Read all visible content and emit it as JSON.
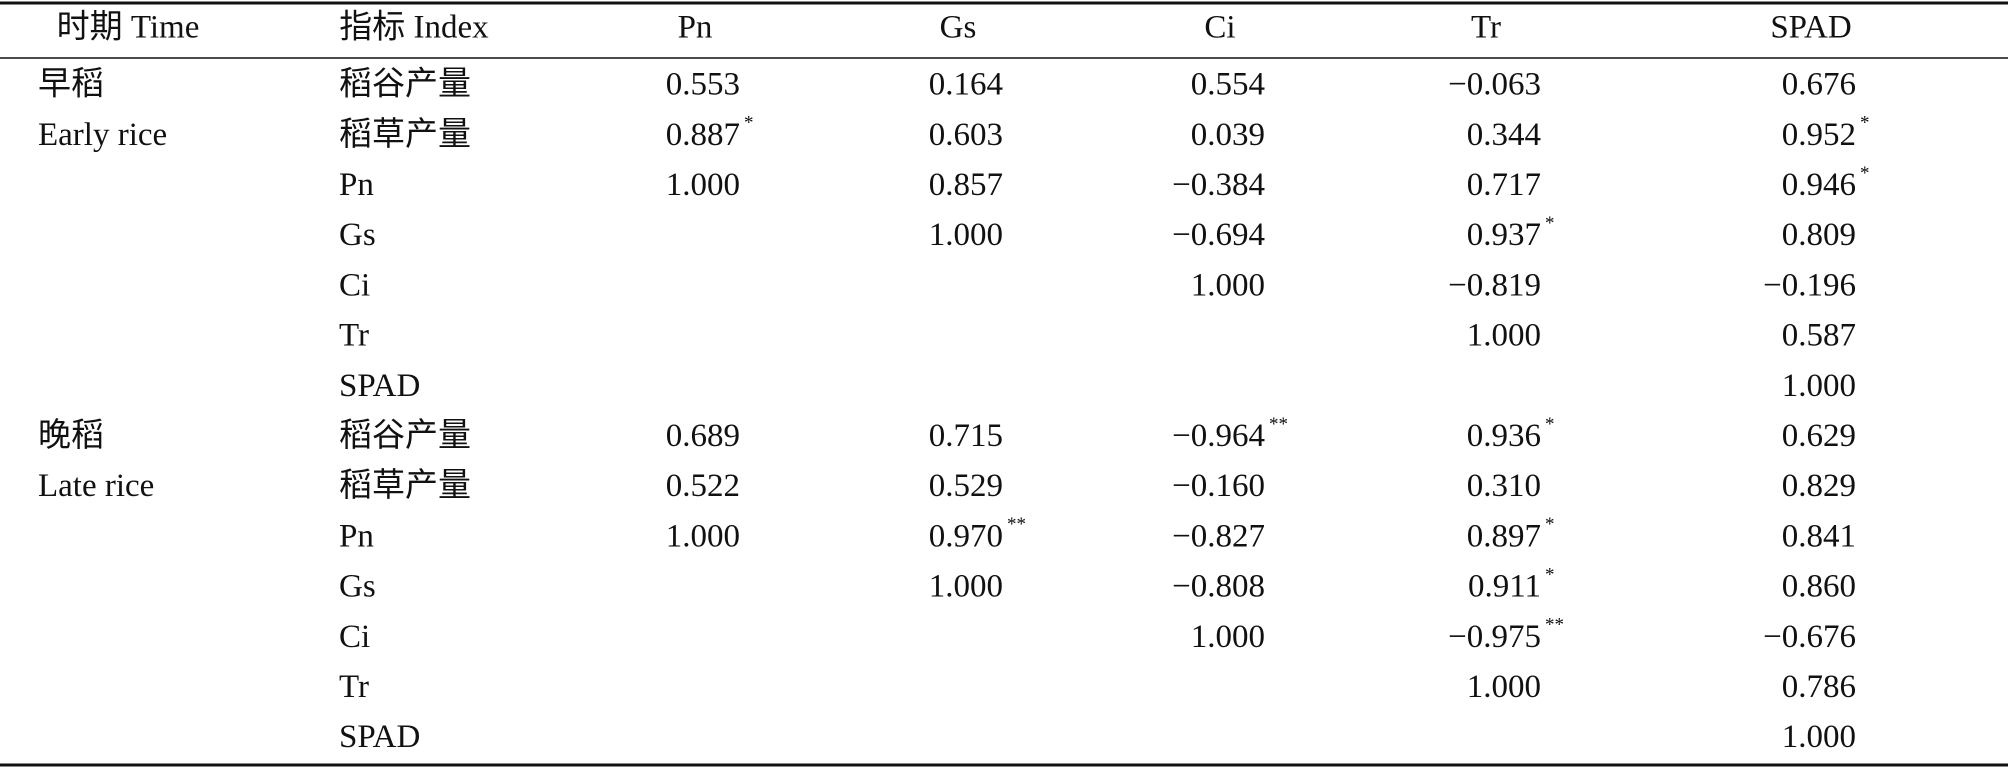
{
  "table": {
    "header": [
      "时期 Time",
      "指标 Index",
      "Pn",
      "Gs",
      "Ci",
      "Tr",
      "SPAD"
    ],
    "rows": [
      {
        "period": "早稻",
        "index": "稻谷产量",
        "values": [
          "0.553",
          "0.164",
          "0.554",
          "−0.063",
          "0.676"
        ],
        "sig": [
          null,
          null,
          null,
          null,
          null
        ]
      },
      {
        "period": "Early rice",
        "index": "稻草产量",
        "values": [
          "0.887",
          "0.603",
          "0.039",
          "0.344",
          "0.952"
        ],
        "sig": [
          "*",
          null,
          null,
          null,
          "*"
        ]
      },
      {
        "index": "Pn",
        "values": [
          "1.000",
          "0.857",
          "−0.384",
          "0.717",
          "0.946"
        ],
        "sig": [
          null,
          null,
          null,
          null,
          "*"
        ]
      },
      {
        "index": "Gs",
        "values": [
          null,
          "1.000",
          "−0.694",
          "0.937",
          "0.809"
        ],
        "sig": [
          null,
          null,
          null,
          "*",
          null
        ]
      },
      {
        "index": "Ci",
        "values": [
          null,
          null,
          "1.000",
          "−0.819",
          "−0.196"
        ],
        "sig": [
          null,
          null,
          null,
          null,
          null
        ]
      },
      {
        "index": "Tr",
        "values": [
          null,
          null,
          null,
          "1.000",
          "0.587"
        ],
        "sig": [
          null,
          null,
          null,
          null,
          null
        ]
      },
      {
        "index": "SPAD",
        "values": [
          null,
          null,
          null,
          null,
          "1.000"
        ],
        "sig": [
          null,
          null,
          null,
          null,
          null
        ]
      },
      {
        "period": "晚稻",
        "index": "稻谷产量",
        "values": [
          "0.689",
          "0.715",
          "−0.964",
          "0.936",
          "0.629"
        ],
        "sig": [
          null,
          null,
          "**",
          "*",
          null
        ]
      },
      {
        "period": "Late rice",
        "index": "稻草产量",
        "values": [
          "0.522",
          "0.529",
          "−0.160",
          "0.310",
          "0.829"
        ],
        "sig": [
          null,
          null,
          null,
          null,
          null
        ]
      },
      {
        "index": "Pn",
        "values": [
          "1.000",
          "0.970",
          "−0.827",
          "0.897",
          "0.841"
        ],
        "sig": [
          null,
          "**",
          null,
          "*",
          null
        ]
      },
      {
        "index": "Gs",
        "values": [
          null,
          "1.000",
          "−0.808",
          "0.911",
          "0.860"
        ],
        "sig": [
          null,
          null,
          null,
          "*",
          null
        ]
      },
      {
        "index": "Ci",
        "values": [
          null,
          null,
          "1.000",
          "−0.975",
          "−0.676"
        ],
        "sig": [
          null,
          null,
          null,
          "**",
          null
        ]
      },
      {
        "index": "Tr",
        "values": [
          null,
          null,
          null,
          "1.000",
          "0.786"
        ],
        "sig": [
          null,
          null,
          null,
          null,
          null
        ]
      },
      {
        "index": "SPAD",
        "values": [
          null,
          null,
          null,
          null,
          "1.000"
        ],
        "sig": [
          null,
          null,
          null,
          null,
          null
        ]
      }
    ]
  }
}
